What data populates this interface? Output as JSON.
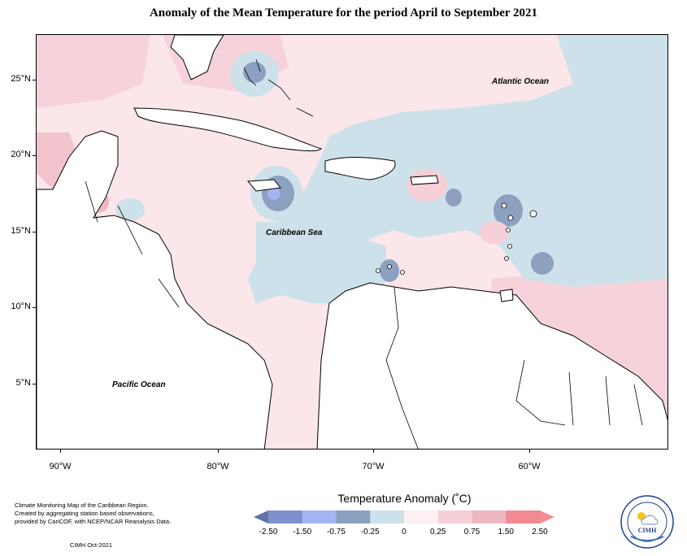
{
  "title": "Anomaly of the Mean Temperature for the period April to September 2021",
  "map": {
    "ocean_labels": [
      "Atlantic Ocean",
      "Caribbean Sea",
      "Pacific Ocean"
    ],
    "lat_labels": [
      "25°N",
      "20°N",
      "15°N",
      "10°N",
      "5°N"
    ],
    "lon_labels": [
      "90°W",
      "80°W",
      "70°W",
      "60°W"
    ]
  },
  "legend": {
    "title": "Temperature Anomaly (˚C)",
    "labels": [
      "-2.50",
      "-1.50",
      "-0.75",
      "-0.25",
      "0",
      "0.25",
      "0.75",
      "1.50",
      "2.50"
    ],
    "colors": [
      "#5f73a6",
      "#7d91cc",
      "#a3b5f2",
      "#8ba1bf",
      "#cde1ea",
      "#fdf0f2",
      "#f6cfd7",
      "#eeb7c0",
      "#f28a92",
      "#f58c92"
    ]
  },
  "credit": {
    "lines": [
      "Climate Monitoring Map of the Caribbean Region.",
      "Created by aggregating station based observations,",
      "provided by CariCOF, with NCEP/NCAR Reanalysis Data."
    ],
    "date": "CIMH Oct-2021"
  },
  "logo": {
    "text": "CIMH"
  }
}
